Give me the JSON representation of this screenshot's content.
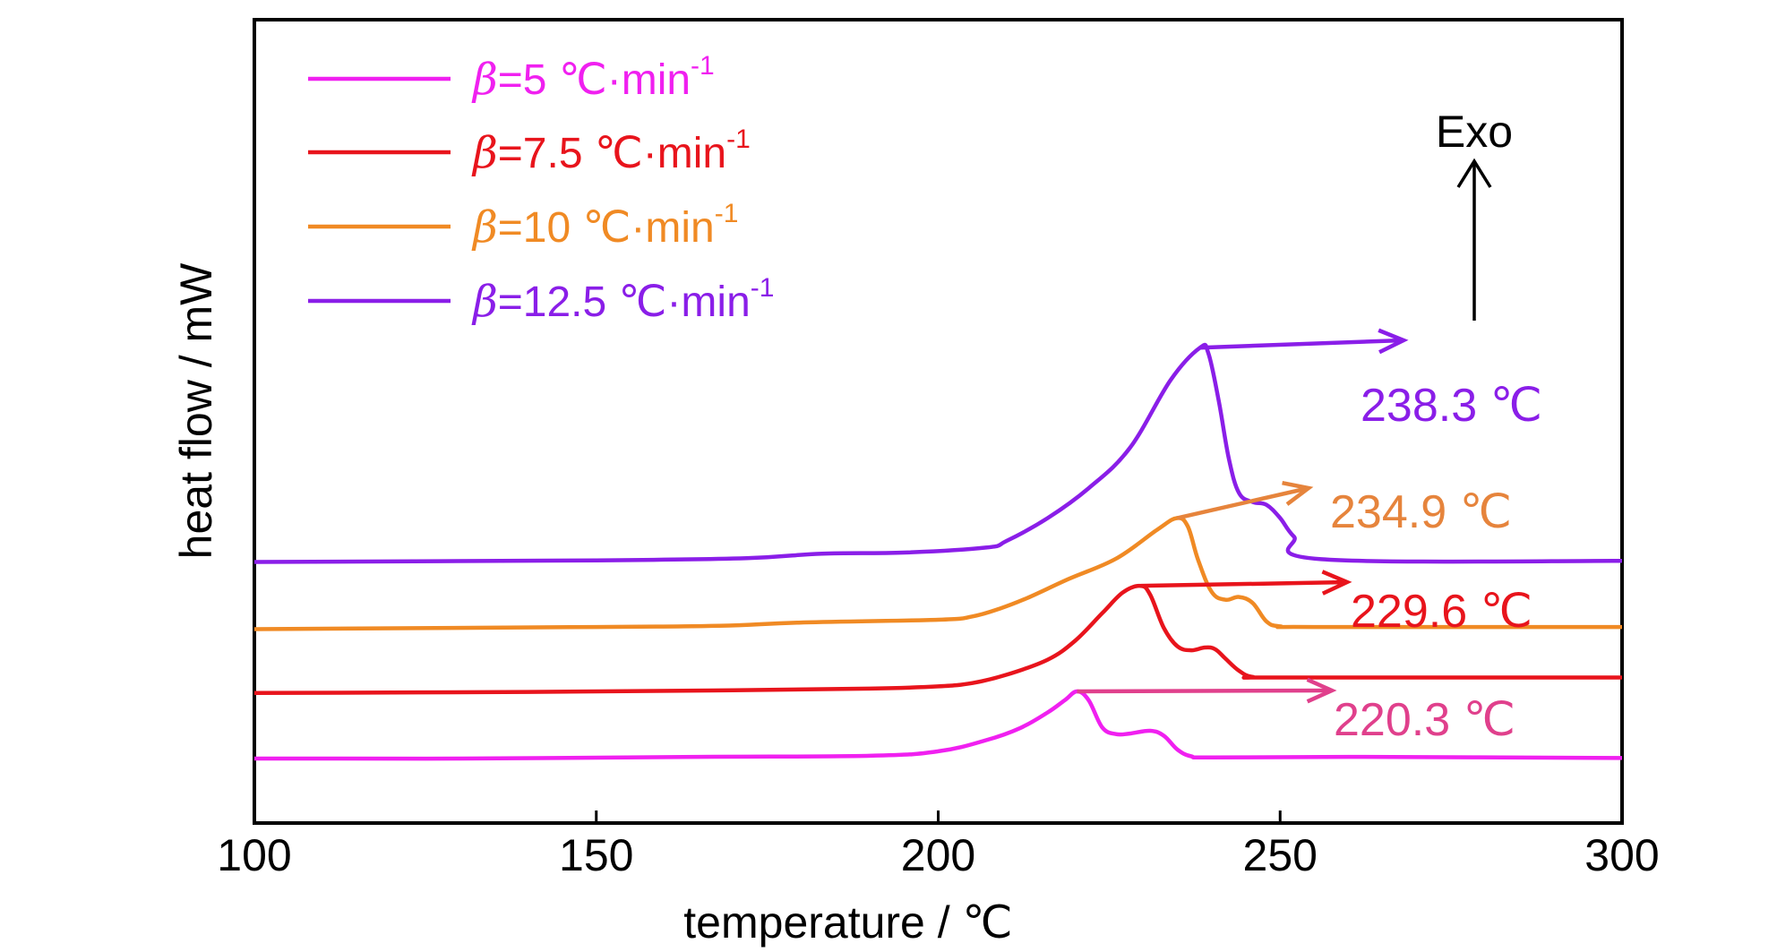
{
  "chart_data": {
    "type": "line",
    "title": "",
    "xlabel": "temperature / ℃",
    "ylabel": "heat flow / mW",
    "xlim": [
      100,
      300
    ],
    "xticks": [
      "100",
      "150",
      "200",
      "250",
      "300"
    ],
    "grid": false,
    "legend_position": "top-left",
    "exo_label": "Exo",
    "series": [
      {
        "name_prefix": "β",
        "name_rest": "=5 ℃·min",
        "name_sup": "-1",
        "color": "#f020f0",
        "peak_label": "220.3 ℃",
        "label_color": "#e0408c",
        "x": [
          100,
          130,
          165,
          190,
          200,
          207,
          212,
          216,
          218.5,
          220.3,
          222,
          224,
          226,
          228,
          231,
          233,
          235,
          237,
          240,
          260,
          300
        ],
        "y": [
          0.0,
          0.0,
          0.03,
          0.05,
          0.13,
          0.33,
          0.55,
          0.83,
          1.05,
          1.21,
          1.05,
          0.56,
          0.44,
          0.45,
          0.5,
          0.41,
          0.16,
          0.04,
          0.02,
          0.03,
          0.01
        ]
      },
      {
        "name_prefix": "β",
        "name_rest": "=7.5 ℃·min",
        "name_sup": "-1",
        "color": "#e8141c",
        "peak_label": "229.6 ℃",
        "label_color": "#e8141c",
        "x": [
          100,
          140,
          170,
          190,
          200,
          205,
          210,
          216,
          220,
          224,
          227,
          229.6,
          231,
          233,
          235,
          237,
          239,
          240.5,
          242,
          244,
          246,
          250,
          300
        ],
        "y": [
          1.18,
          1.2,
          1.23,
          1.26,
          1.3,
          1.36,
          1.51,
          1.78,
          2.12,
          2.62,
          2.99,
          3.11,
          2.95,
          2.35,
          2.02,
          1.95,
          2.0,
          1.97,
          1.8,
          1.58,
          1.47,
          1.46,
          1.46
        ]
      },
      {
        "name_prefix": "β",
        "name_rest": "=10 ℃·min",
        "name_sup": "-1",
        "color": "#f08a24",
        "peak_label": "234.9 ℃",
        "label_color": "#e6843c",
        "x": [
          100,
          150,
          168,
          180,
          200,
          205,
          209,
          213,
          219,
          226,
          232,
          234.9,
          236.5,
          238,
          240,
          242,
          244,
          246,
          248,
          250,
          255,
          300
        ],
        "y": [
          2.33,
          2.37,
          2.39,
          2.45,
          2.5,
          2.56,
          2.7,
          2.89,
          3.23,
          3.6,
          4.12,
          4.33,
          4.18,
          3.58,
          3.0,
          2.86,
          2.91,
          2.8,
          2.47,
          2.38,
          2.37,
          2.37
        ]
      },
      {
        "name_prefix": "β",
        "name_rest": "=12.5 ℃·min",
        "name_sup": "-1",
        "color": "#8a1ee8",
        "peak_label": "238.3 ℃",
        "label_color": "#8a1ee8",
        "x": [
          100,
          150,
          172,
          183,
          195,
          207,
          210,
          216,
          222,
          228,
          234,
          238.3,
          239.5,
          241,
          242.5,
          244,
          246,
          248,
          250,
          252,
          256,
          300
        ],
        "y": [
          3.54,
          3.57,
          3.61,
          3.69,
          3.71,
          3.8,
          3.92,
          4.33,
          4.87,
          5.59,
          6.82,
          7.4,
          7.3,
          6.46,
          5.4,
          4.78,
          4.62,
          4.57,
          4.33,
          4.0,
          3.59,
          3.56
        ]
      }
    ]
  }
}
